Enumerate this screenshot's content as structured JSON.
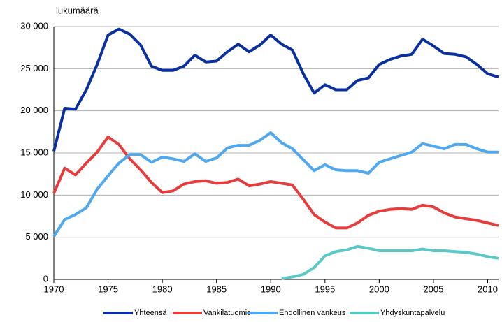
{
  "chart_data": {
    "type": "line",
    "y_label": "lukumäärä",
    "x": [
      1970,
      1971,
      1972,
      1973,
      1974,
      1975,
      1976,
      1977,
      1978,
      1979,
      1980,
      1981,
      1982,
      1983,
      1984,
      1985,
      1986,
      1987,
      1988,
      1989,
      1990,
      1991,
      1992,
      1993,
      1994,
      1995,
      1996,
      1997,
      1998,
      1999,
      2000,
      2001,
      2002,
      2003,
      2004,
      2005,
      2006,
      2007,
      2008,
      2009,
      2010,
      2011
    ],
    "series": [
      {
        "name": "Yhteensä",
        "color": "#0a2fa0",
        "values": [
          15200,
          20300,
          20200,
          22500,
          25500,
          29000,
          29700,
          29100,
          27800,
          25300,
          24800,
          24800,
          25300,
          26600,
          25800,
          25900,
          27000,
          27900,
          27000,
          27800,
          29000,
          27900,
          27200,
          24400,
          22100,
          23100,
          22500,
          22500,
          23600,
          23900,
          25500,
          26100,
          26500,
          26700,
          28500,
          27700,
          26800,
          26700,
          26400,
          25500,
          24400,
          24000
        ]
      },
      {
        "name": "Vankilatuomio",
        "color": "#e83c3c",
        "values": [
          10200,
          13200,
          12400,
          13800,
          15100,
          16900,
          16000,
          14300,
          13000,
          11500,
          10300,
          10500,
          11300,
          11600,
          11700,
          11400,
          11500,
          11900,
          11100,
          11300,
          11600,
          11400,
          11200,
          9500,
          7700,
          6800,
          6100,
          6100,
          6700,
          7600,
          8100,
          8300,
          8400,
          8300,
          8800,
          8600,
          7900,
          7400,
          7200,
          7000,
          6700,
          6400
        ]
      },
      {
        "name": "Ehdollinen vankeus",
        "color": "#4fa8f0",
        "values": [
          5100,
          7100,
          7700,
          8500,
          10700,
          12300,
          13800,
          14800,
          14800,
          13900,
          14500,
          14300,
          14000,
          14900,
          14000,
          14400,
          15600,
          15900,
          15900,
          16500,
          17400,
          16200,
          15500,
          14200,
          12900,
          13600,
          13000,
          12900,
          12900,
          12600,
          13900,
          14300,
          14700,
          15100,
          16100,
          15800,
          15500,
          16000,
          16000,
          15500,
          15100,
          15100
        ]
      },
      {
        "name": "Yhdyskuntapalvelu",
        "color": "#5bc8c8",
        "values": [
          null,
          null,
          null,
          null,
          null,
          null,
          null,
          null,
          null,
          null,
          null,
          null,
          null,
          null,
          null,
          null,
          null,
          null,
          null,
          null,
          null,
          100,
          300,
          600,
          1400,
          2800,
          3300,
          3500,
          3900,
          3700,
          3400,
          3400,
          3400,
          3400,
          3600,
          3400,
          3400,
          3300,
          3200,
          3000,
          2700,
          2500
        ]
      }
    ],
    "xlim": [
      1970,
      2011
    ],
    "xticks": [
      1970,
      1975,
      1980,
      1985,
      1990,
      1995,
      2000,
      2005,
      2010
    ],
    "ylim": [
      0,
      30000
    ],
    "yticks": [
      0,
      {
        "value": 5000,
        "label": "5 000"
      },
      {
        "value": 10000,
        "label": "10 000"
      },
      {
        "value": 15000,
        "label": "15 000"
      },
      {
        "value": 20000,
        "label": "20 000"
      },
      {
        "value": 25000,
        "label": "25 000"
      },
      {
        "value": 30000,
        "label": "30 000"
      }
    ],
    "grid": true,
    "legend": "bottom"
  }
}
